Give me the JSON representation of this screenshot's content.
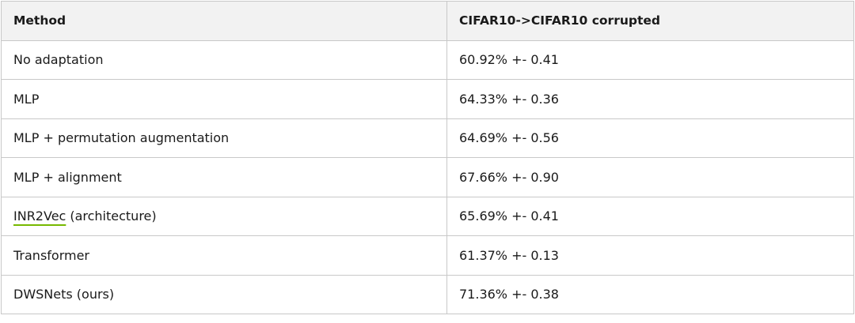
{
  "table": {
    "header": [
      "Method",
      "CIFAR10->CIFAR10 corrupted"
    ],
    "rows": [
      [
        "No adaptation",
        "60.92% +- 0.41"
      ],
      [
        "MLP",
        "64.33% +- 0.36"
      ],
      [
        "MLP + permutation augmentation",
        "64.69% +- 0.56"
      ],
      [
        "MLP + alignment",
        "67.66% +- 0.90"
      ],
      [
        {
          "link": "INR2Vec",
          "text": "(architecture)"
        },
        "65.69% +- 0.41"
      ],
      [
        "Transformer",
        "61.37% +- 0.13"
      ],
      [
        "DWSNets (ours)",
        "71.36% +- 0.38"
      ]
    ]
  }
}
